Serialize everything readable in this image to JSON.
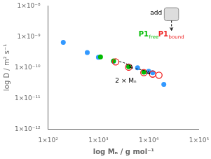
{
  "chart_data": {
    "type": "scatter",
    "xlabel": "log Mₙ / g mol⁻¹",
    "ylabel": "log D / m² s⁻¹",
    "log": true,
    "grid": false,
    "xlim": [
      100.0,
      100000.0
    ],
    "ylim": [
      1e-12,
      1e-08
    ],
    "xticks": [
      {
        "value": 100.0,
        "label": "1×10²"
      },
      {
        "value": 1000.0,
        "label": "1×10³"
      },
      {
        "value": 10000.0,
        "label": "1×10⁴"
      },
      {
        "value": 100000.0,
        "label": "1×10⁵"
      }
    ],
    "yticks": [
      {
        "value": 1e-12,
        "label": "1×10⁻¹²"
      },
      {
        "value": 1e-11,
        "label": "1×10⁻¹¹"
      },
      {
        "value": 1e-10,
        "label": "1×10⁻¹⁰"
      },
      {
        "value": 1e-09,
        "label": "1×10⁻⁹"
      },
      {
        "value": 1e-08,
        "label": "1×10⁻⁸"
      }
    ],
    "series": [
      {
        "color": "#3399ff",
        "marker": "circle",
        "x": [
          200,
          600,
          1000,
          2000,
          4000,
          6000,
          10000,
          12000,
          20000
        ],
        "values": [
          6.5e-10,
          3.05e-10,
          2.15e-10,
          1.58e-10,
          1.12e-10,
          9.8e-11,
          7.5e-11,
          6.8e-11,
          2.8e-11
        ]
      },
      {
        "name": "P1free",
        "color": "#00bb00",
        "marker": "circle",
        "x": [
          1100,
          2000,
          4000,
          8000
        ],
        "values": [
          2.2e-10,
          1.62e-10,
          1.05e-10,
          7e-11
        ]
      },
      {
        "name": "P1bound",
        "color": "#ee2222",
        "marker": "ring",
        "x": [
          2200,
          4000,
          8000,
          12000,
          16000
        ],
        "values": [
          1.52e-10,
          1.02e-10,
          6.8e-11,
          6.1e-11,
          5.6e-11
        ]
      }
    ],
    "annotations": [
      "2 × Mₙ",
      "add"
    ]
  }
}
